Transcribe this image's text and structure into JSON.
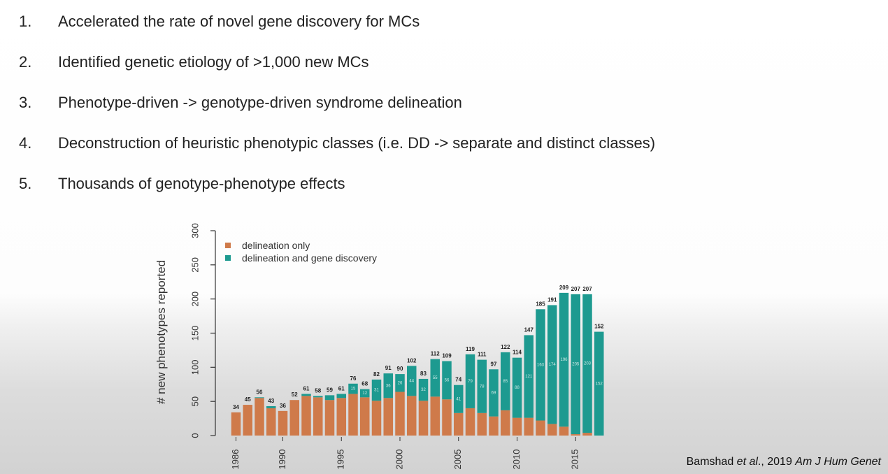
{
  "slide": {
    "items": [
      {
        "num": "1.",
        "text": "Accelerated the rate of novel gene discovery for MCs"
      },
      {
        "num": "2.",
        "text": "Identified genetic etiology of >1,000 new MCs"
      },
      {
        "num": "3.",
        "text": "Phenotype-driven -> genotype-driven syndrome delineation"
      },
      {
        "num": "4.",
        "text": "Deconstruction of heuristic phenotypic classes (i.e. DD -> separate and distinct classes)"
      },
      {
        "num": "5.",
        "text": "Thousands of genotype-phenotype effects"
      }
    ],
    "citation": {
      "author": "Bamshad ",
      "etal": "et al",
      "rest": "., 2019 ",
      "journal": "Am J Hum Genet"
    }
  },
  "chart_data": {
    "type": "bar",
    "stacked": true,
    "ylabel": "# new phenotypes reported",
    "ylim": [
      0,
      300
    ],
    "yticks": [
      0,
      50,
      100,
      150,
      200,
      250,
      300
    ],
    "xtick_labels": [
      "1986",
      "1990",
      "1995",
      "2000",
      "2005",
      "2010",
      "2015"
    ],
    "legend": {
      "position": "top-left",
      "entries": [
        {
          "name": "delineation only",
          "color": "#cf7a4a"
        },
        {
          "name": "delineation and gene discovery",
          "color": "#1d9a90"
        }
      ]
    },
    "x": [
      1986,
      1987,
      1988,
      1989,
      1990,
      1991,
      1992,
      1993,
      1994,
      1995,
      1996,
      1997,
      1998,
      1999,
      2000,
      2001,
      2002,
      2003,
      2004,
      2005,
      2006,
      2007,
      2008,
      2009,
      2010,
      2011,
      2012,
      2013,
      2014,
      2015,
      2016,
      2017
    ],
    "totals": [
      34,
      45,
      56,
      43,
      36,
      52,
      61,
      58,
      59,
      61,
      76,
      68,
      82,
      91,
      90,
      102,
      83,
      112,
      109,
      74,
      119,
      111,
      97,
      122,
      114,
      147,
      185,
      191,
      209,
      207,
      207,
      152
    ],
    "series": [
      {
        "name": "delineation only",
        "color": "#cf7a4a",
        "values": [
          34,
          45,
          55,
          40,
          36,
          52,
          58,
          56,
          52,
          55,
          61,
          56,
          51,
          55,
          64,
          58,
          51,
          57,
          53,
          33,
          40,
          33,
          28,
          37,
          26,
          26,
          22,
          17,
          13,
          2,
          4,
          0
        ]
      },
      {
        "name": "delineation and gene discovery",
        "color": "#1d9a90",
        "values": [
          0,
          0,
          1,
          3,
          0,
          0,
          3,
          2,
          7,
          6,
          15,
          12,
          31,
          36,
          26,
          44,
          32,
          55,
          56,
          41,
          79,
          78,
          69,
          85,
          88,
          121,
          163,
          174,
          196,
          205,
          203,
          152
        ]
      }
    ],
    "inner_labels": [
      "",
      "",
      "",
      "",
      "",
      "",
      "",
      "",
      "",
      "",
      "15",
      "12",
      "31",
      "36",
      "26",
      "44",
      "32",
      "55",
      "56",
      "41",
      "79",
      "78",
      "69",
      "85",
      "88",
      "121",
      "163",
      "174",
      "196",
      "205",
      "203",
      "152"
    ]
  }
}
